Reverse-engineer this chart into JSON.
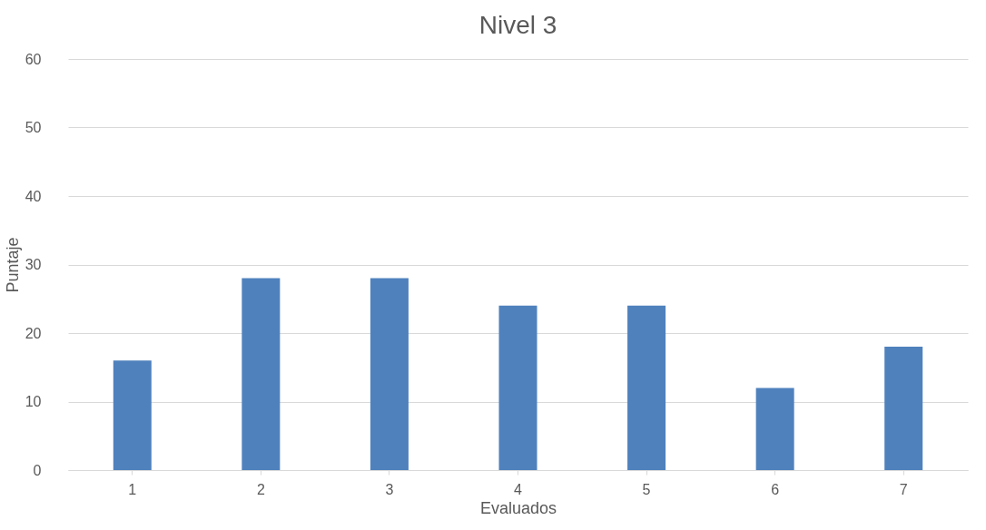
{
  "chart_data": {
    "type": "bar",
    "title": "Nivel 3",
    "xlabel": "Evaluados",
    "ylabel": "Puntaje",
    "categories": [
      "1",
      "2",
      "3",
      "4",
      "5",
      "6",
      "7"
    ],
    "values": [
      16,
      28,
      28,
      24,
      24,
      12,
      18
    ],
    "color": "#4f81bd",
    "ylim": [
      0,
      60
    ],
    "yticks": [
      0,
      10,
      20,
      30,
      40,
      50,
      60
    ],
    "grid": "y"
  }
}
